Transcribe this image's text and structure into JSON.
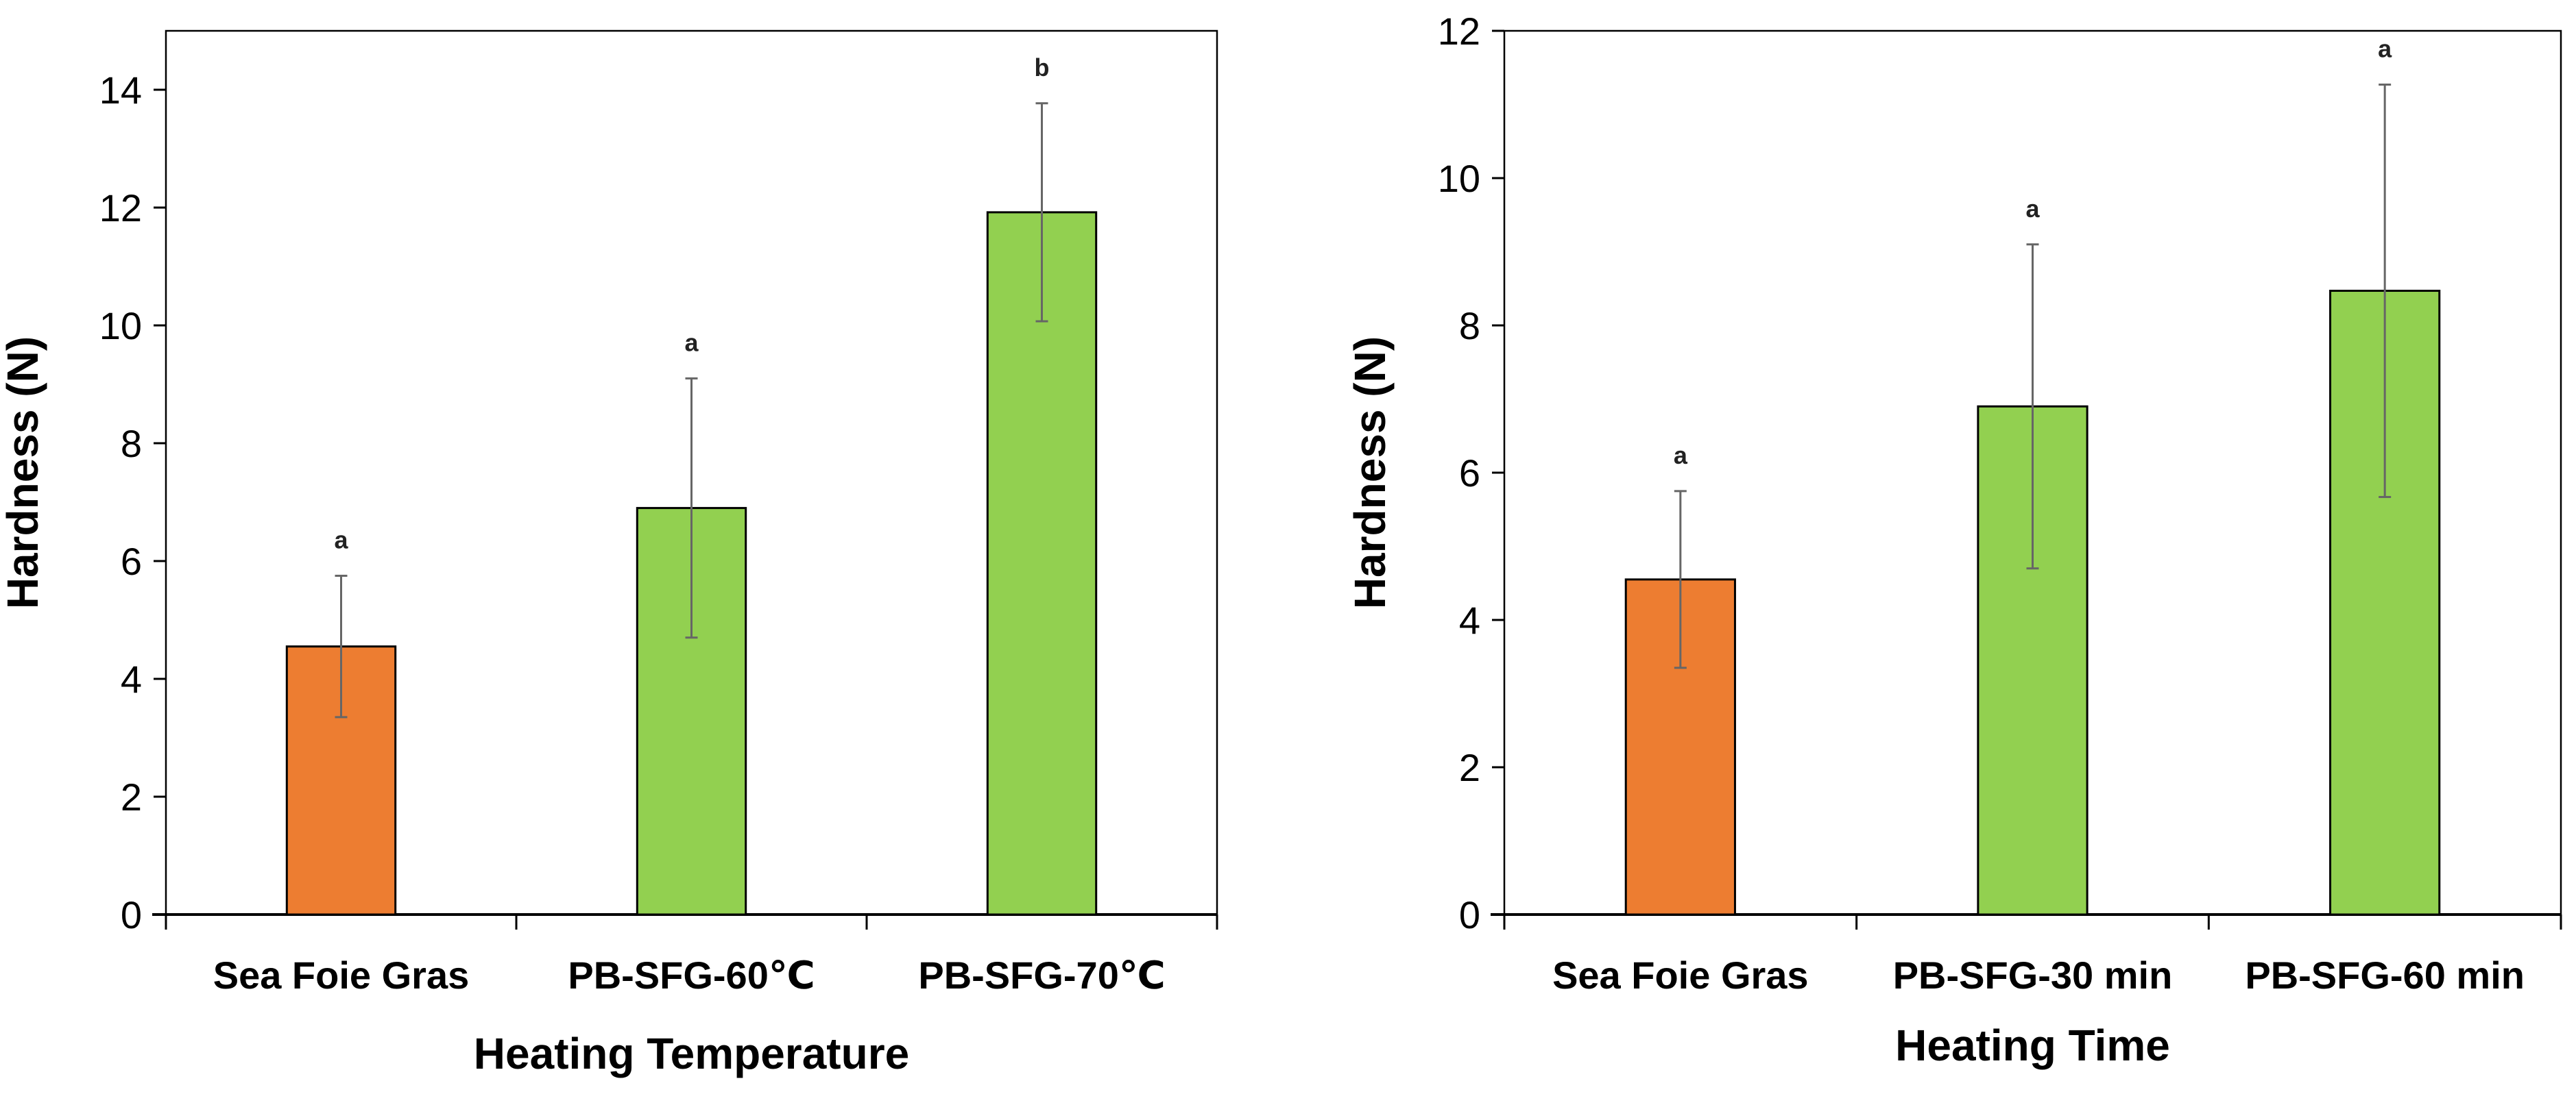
{
  "chart_data": [
    {
      "type": "bar",
      "title": "",
      "xlabel": "Heating Temperature",
      "ylabel": "Hardness (N)",
      "ylim": [
        0,
        15
      ],
      "yticks": [
        0,
        2,
        4,
        6,
        8,
        10,
        12,
        14
      ],
      "categories": [
        "Sea Foie Gras",
        "PB-SFG-60℃",
        "PB-SFG-70℃"
      ],
      "values": [
        4.55,
        6.9,
        11.92
      ],
      "error": [
        1.2,
        2.2,
        1.85
      ],
      "significance": [
        "a",
        "a",
        "b"
      ],
      "colors": [
        "#ED7D31",
        "#92D050",
        "#92D050"
      ],
      "grid": false
    },
    {
      "type": "bar",
      "title": "",
      "xlabel": "Heating Time",
      "ylabel": "Hardness (N)",
      "ylim": [
        0,
        12
      ],
      "yticks": [
        0,
        2,
        4,
        6,
        8,
        10,
        12
      ],
      "categories": [
        "Sea Foie Gras",
        "PB-SFG-30 min",
        "PB-SFG-60 min"
      ],
      "values": [
        4.55,
        6.9,
        8.47
      ],
      "error": [
        1.2,
        2.2,
        2.8
      ],
      "significance": [
        "a",
        "a",
        "a"
      ],
      "colors": [
        "#ED7D31",
        "#92D050",
        "#92D050"
      ],
      "grid": false
    }
  ]
}
